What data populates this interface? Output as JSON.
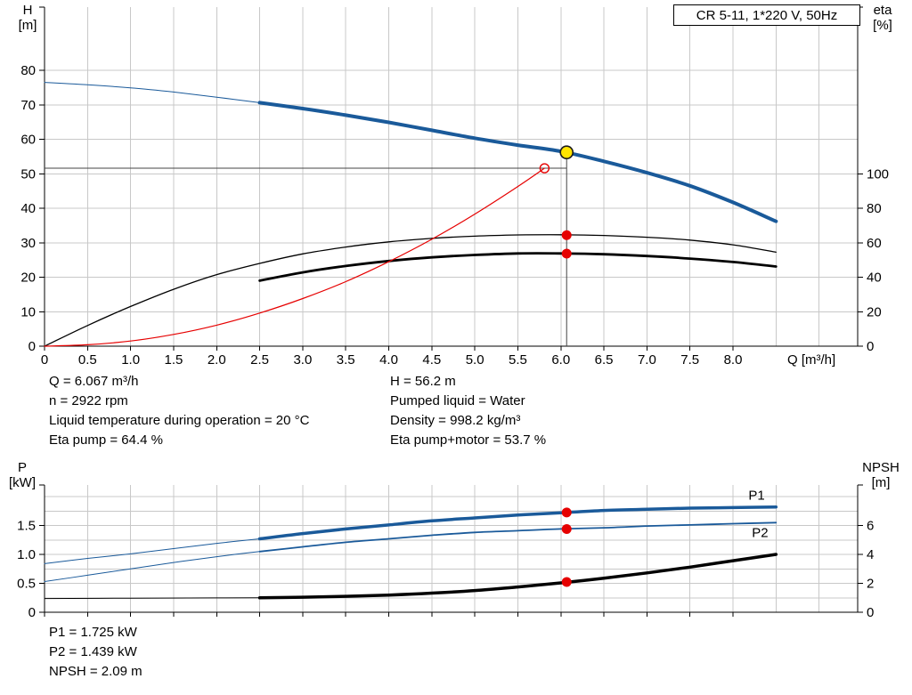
{
  "title_box": "CR 5-11, 1*220 V, 50Hz",
  "colors": {
    "curve_blue": "#1a5a9a",
    "curve_black": "#000000",
    "curve_red": "#e60000",
    "point_red": "#e60000",
    "point_yellow": "#ffe400",
    "grid": "#c8c8c8",
    "axis": "#000000",
    "guide": "#444444"
  },
  "axis_labels": {
    "top_left_1": "H",
    "top_left_2": "[m]",
    "top_right_1": "eta",
    "top_right_2": "[%]",
    "bot_left_1": "P",
    "bot_left_2": "[kW]",
    "bot_right_1": "NPSH",
    "bot_right_2": "[m]"
  },
  "results": {
    "left": [
      "Q = 6.067 m³/h",
      "n = 2922 rpm",
      "Liquid temperature during operation = 20 °C",
      "Eta pump = 64.4 %"
    ],
    "right": [
      "H = 56.2 m",
      "Pumped liquid = Water",
      "Density = 998.2 kg/m³",
      "Eta pump+motor = 53.7 %"
    ],
    "bottom": [
      "P1 = 1.725 kW",
      "P2 = 1.439 kW",
      "NPSH = 2.09 m"
    ]
  },
  "chart_data": [
    {
      "type": "line",
      "name": "head-efficiency-chart",
      "title": "CR 5-11, 1*220 V, 50Hz",
      "x_axis": {
        "label": "Q [m³/h]",
        "min": 0,
        "max": 9.45,
        "tick_values": [
          0,
          0.5,
          1,
          1.5,
          2,
          2.5,
          3,
          3.5,
          4,
          4.5,
          5,
          5.5,
          6,
          6.5,
          7,
          7.5,
          8
        ],
        "tick_labels": [
          "0",
          "0.5",
          "1.0",
          "1.5",
          "2.0",
          "2.5",
          "3.0",
          "3.5",
          "4.0",
          "4.5",
          "5.0",
          "5.5",
          "6.0",
          "6.5",
          "7.0",
          "7.5",
          "8.0"
        ]
      },
      "y_left": {
        "label": "H [m]",
        "min": 0,
        "max": 98,
        "tick_values": [
          0,
          10,
          20,
          30,
          40,
          50,
          60,
          70,
          80
        ],
        "tick_labels": [
          "0",
          "10",
          "20",
          "30",
          "40",
          "50",
          "60",
          "70",
          "80"
        ]
      },
      "y_right": {
        "label": "eta [%]",
        "min": 0,
        "max": 196,
        "tick_values": [
          0,
          20,
          40,
          60,
          80,
          100
        ],
        "tick_labels": [
          "0",
          "20",
          "40",
          "60",
          "80",
          "100"
        ]
      },
      "grid_x": [
        0.5,
        1,
        1.5,
        2,
        2.5,
        3,
        3.5,
        4,
        4.5,
        5,
        5.5,
        6,
        6.5,
        7,
        7.5,
        8,
        8.5,
        9
      ],
      "grid_y_left": [
        10,
        20,
        30,
        40,
        50,
        60,
        70,
        80
      ],
      "guides": [
        {
          "name": "duty-head-guide",
          "axis": "left",
          "x1": 0,
          "y1": 51.6,
          "x2": 6.067,
          "y2": 51.6,
          "width": 1,
          "color": "guide"
        },
        {
          "name": "duty-flow-guide",
          "axis": "left",
          "x1": 6.067,
          "y1": 0,
          "x2": 6.067,
          "y2": 56.2,
          "width": 1,
          "color": "guide"
        }
      ],
      "series": [
        {
          "name": "head-curve-lead",
          "label": "H-Q curve (low flow)",
          "axis": "left",
          "color": "curve_blue",
          "width": 1,
          "x": [
            0,
            0.5,
            1,
            1.5,
            2,
            2.5
          ],
          "y": [
            76.5,
            75.8,
            74.9,
            73.7,
            72.2,
            70.6
          ]
        },
        {
          "name": "head-curve",
          "label": "H-Q curve",
          "axis": "left",
          "color": "curve_blue",
          "width": 4,
          "x": [
            2.5,
            3,
            3.5,
            4,
            4.5,
            5,
            5.5,
            6,
            6.5,
            7,
            7.5,
            8,
            8.5
          ],
          "y": [
            70.6,
            68.9,
            67.0,
            64.9,
            62.6,
            60.3,
            58.3,
            56.5,
            53.6,
            50.3,
            46.5,
            41.7,
            36.2
          ]
        },
        {
          "name": "eta-pump-curve",
          "label": "Eta pump",
          "axis": "right",
          "color": "curve_black",
          "width": 1.3,
          "x": [
            0,
            0.5,
            1,
            1.5,
            2,
            2.5,
            3,
            3.5,
            4,
            4.5,
            5,
            5.5,
            6,
            6.5,
            7,
            7.5,
            8,
            8.5
          ],
          "y": [
            0,
            12,
            23,
            33,
            41.5,
            48,
            53.5,
            57.5,
            60.5,
            62.5,
            63.8,
            64.5,
            64.6,
            64.2,
            63.2,
            61.5,
            58.8,
            54.5
          ]
        },
        {
          "name": "eta-pump-motor-curve",
          "label": "Eta pump+motor",
          "axis": "right",
          "color": "curve_black",
          "width": 2.8,
          "x": [
            2.5,
            3,
            3.5,
            4,
            4.5,
            5,
            5.5,
            6,
            6.5,
            7,
            7.5,
            8,
            8.5
          ],
          "y": [
            38,
            42.8,
            46.5,
            49.4,
            51.5,
            52.9,
            53.8,
            53.8,
            53.3,
            52.3,
            50.8,
            48.8,
            46.2
          ]
        },
        {
          "name": "system-curve",
          "label": "System curve",
          "axis": "left",
          "color": "curve_red",
          "width": 1.2,
          "x": [
            0,
            0.5,
            1,
            1.5,
            2,
            2.5,
            3,
            3.5,
            4,
            4.5,
            5,
            5.5,
            5.81
          ],
          "y": [
            0,
            0.4,
            1.5,
            3.4,
            6.1,
            9.6,
            13.8,
            18.7,
            24.5,
            31.0,
            38.3,
            46.3,
            51.6
          ]
        }
      ],
      "points": [
        {
          "name": "duty-point-requested",
          "axis": "left",
          "x": 5.81,
          "y": 51.6,
          "style": "open-red"
        },
        {
          "name": "op-point-eta-pump",
          "axis": "right",
          "x": 6.067,
          "y": 64.4,
          "style": "red"
        },
        {
          "name": "op-point-eta-pump-motor",
          "axis": "right",
          "x": 6.067,
          "y": 53.7,
          "style": "red"
        },
        {
          "name": "op-point-head",
          "axis": "left",
          "x": 6.067,
          "y": 56.2,
          "style": "yellow"
        }
      ],
      "annotations": []
    },
    {
      "type": "line",
      "name": "power-npsh-chart",
      "title": "",
      "x_axis": {
        "label": "",
        "min": 0,
        "max": 9.45,
        "tick_values": [
          0,
          0.5,
          1,
          1.5,
          2,
          2.5,
          3,
          3.5,
          4,
          4.5,
          5,
          5.5,
          6,
          6.5,
          7,
          7.5,
          8
        ],
        "tick_labels": []
      },
      "y_left": {
        "label": "P [kW]",
        "min": 0,
        "max": 2.2,
        "tick_values": [
          0,
          0.5,
          1,
          1.5
        ],
        "tick_labels": [
          "0",
          "0.5",
          "1.0",
          "1.5"
        ]
      },
      "y_right": {
        "label": "NPSH [m]",
        "min": 0,
        "max": 8.8,
        "tick_values": [
          0,
          2,
          4,
          6
        ],
        "tick_labels": [
          "0",
          "2",
          "4",
          "6"
        ]
      },
      "grid_x": [
        0.5,
        1,
        1.5,
        2,
        2.5,
        3,
        3.5,
        4,
        4.5,
        5,
        5.5,
        6,
        6.5,
        7,
        7.5,
        8,
        8.5,
        9
      ],
      "grid_y_left": [
        0.25,
        0.5,
        0.75,
        1,
        1.25,
        1.5,
        1.75,
        2
      ],
      "guides": [],
      "series": [
        {
          "name": "p1-curve-lead",
          "label": "P1 (low flow)",
          "axis": "left",
          "color": "curve_blue",
          "width": 1,
          "x": [
            0,
            0.5,
            1,
            1.5,
            2,
            2.5
          ],
          "y": [
            0.84,
            0.93,
            1.01,
            1.1,
            1.19,
            1.27
          ]
        },
        {
          "name": "p1-curve",
          "label": "P1",
          "axis": "left",
          "color": "curve_blue",
          "width": 3.5,
          "x": [
            2.5,
            3,
            3.5,
            4,
            4.5,
            5,
            5.5,
            6,
            6.5,
            7,
            7.5,
            8,
            8.5
          ],
          "y": [
            1.27,
            1.36,
            1.44,
            1.51,
            1.58,
            1.63,
            1.68,
            1.72,
            1.76,
            1.78,
            1.8,
            1.81,
            1.82
          ]
        },
        {
          "name": "p2-curve-lead",
          "label": "P2 (low flow)",
          "axis": "left",
          "color": "curve_blue",
          "width": 1,
          "x": [
            0,
            0.5,
            1,
            1.5,
            2,
            2.5
          ],
          "y": [
            0.53,
            0.64,
            0.75,
            0.86,
            0.96,
            1.05
          ]
        },
        {
          "name": "p2-curve",
          "label": "P2",
          "axis": "left",
          "color": "curve_blue",
          "width": 1.8,
          "x": [
            2.5,
            3,
            3.5,
            4,
            4.5,
            5,
            5.5,
            6,
            6.5,
            7,
            7.5,
            8,
            8.5
          ],
          "y": [
            1.05,
            1.13,
            1.21,
            1.27,
            1.33,
            1.38,
            1.41,
            1.44,
            1.46,
            1.49,
            1.51,
            1.53,
            1.55
          ]
        },
        {
          "name": "npsh-curve-lead",
          "label": "NPSH (low flow)",
          "axis": "right",
          "color": "curve_black",
          "width": 1,
          "x": [
            0,
            1,
            2,
            2.5
          ],
          "y": [
            0.95,
            0.97,
            0.99,
            1.0
          ]
        },
        {
          "name": "npsh-curve",
          "label": "NPSH",
          "axis": "right",
          "color": "curve_black",
          "width": 3.5,
          "x": [
            2.5,
            3,
            3.5,
            4,
            4.5,
            5,
            5.5,
            6,
            6.5,
            7,
            7.5,
            8,
            8.5
          ],
          "y": [
            1.0,
            1.04,
            1.1,
            1.19,
            1.32,
            1.5,
            1.75,
            2.03,
            2.35,
            2.72,
            3.12,
            3.56,
            4.0
          ]
        }
      ],
      "points": [
        {
          "name": "op-point-p1",
          "axis": "left",
          "x": 6.067,
          "y": 1.725,
          "style": "red"
        },
        {
          "name": "op-point-p2",
          "axis": "left",
          "x": 6.067,
          "y": 1.439,
          "style": "red"
        },
        {
          "name": "op-point-npsh",
          "axis": "right",
          "x": 6.067,
          "y": 2.09,
          "style": "red"
        }
      ],
      "annotations": [
        {
          "text": "P1",
          "x": 8.18,
          "y": 1.95,
          "axis": "left",
          "color": "curve_blue"
        },
        {
          "text": "P2",
          "x": 8.22,
          "y": 1.3,
          "axis": "left",
          "color": "curve_blue"
        }
      ]
    }
  ]
}
